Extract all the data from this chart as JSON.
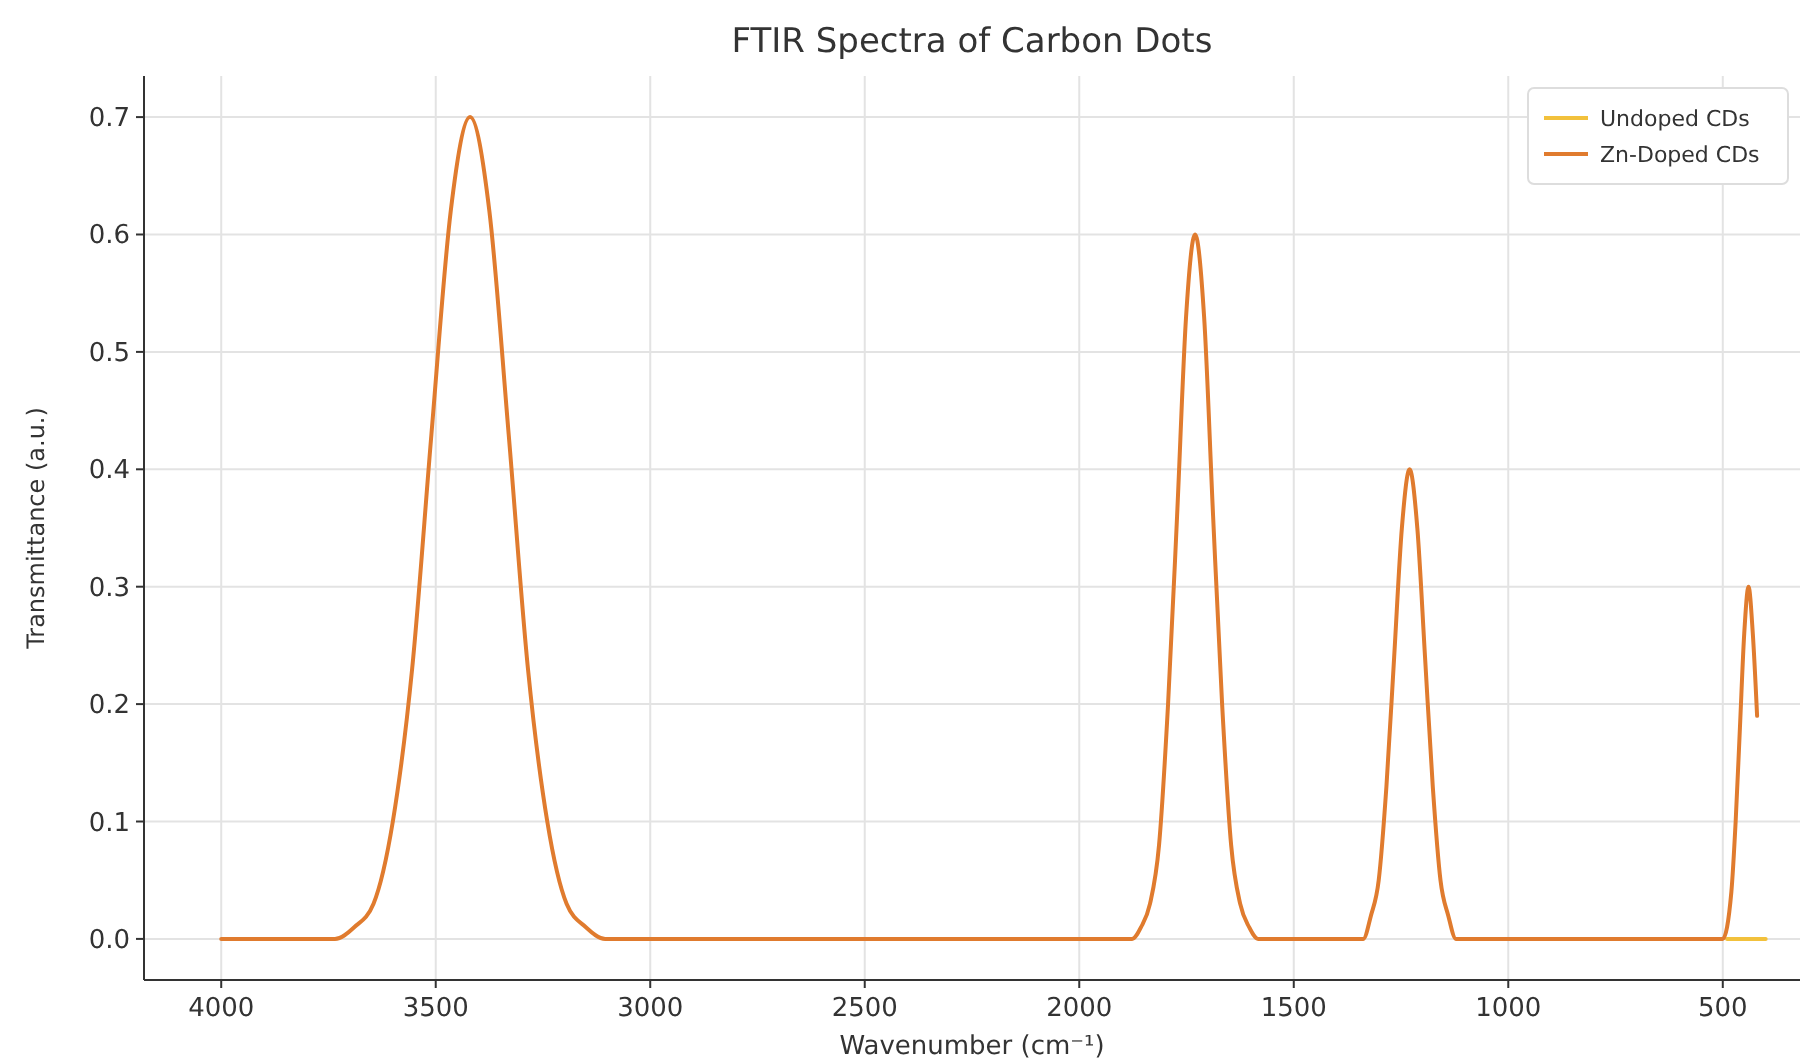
{
  "chart_data": {
    "type": "line",
    "title": "FTIR Spectra of Carbon Dots",
    "xlabel": "Wavenumber (cm⁻¹)",
    "ylabel": "Transmittance (a.u.)",
    "xlim": [
      4180,
      320
    ],
    "xticks": [
      4000,
      3500,
      3000,
      2500,
      2000,
      1500,
      1000,
      500
    ],
    "ylim": [
      -0.035,
      0.735
    ],
    "yticks": [
      {
        "value": 0,
        "label": "0.0"
      },
      0.1,
      0.2,
      0.3,
      0.4,
      0.5,
      0.6,
      0.7
    ],
    "grid": true,
    "legend": "top right",
    "line_style": "solid",
    "marker": "none",
    "series": [
      {
        "name": "Undoped CDs",
        "color": "#f2c13c",
        "x": [
          490,
          400
        ],
        "values": [
          0,
          0
        ]
      },
      {
        "name": "Zn-Doped CDs",
        "color": "#e07b2e",
        "x": [
          4000,
          3735,
          3690,
          3645,
          3600,
          3555,
          3510,
          3465,
          3420,
          3375,
          3330,
          3285,
          3240,
          3195,
          3150,
          3105,
          1877,
          1856,
          1835,
          1814,
          1793,
          1772,
          1751,
          1730,
          1709,
          1688,
          1667,
          1646,
          1625,
          1604,
          1583,
          1356,
          1338,
          1320,
          1302,
          1284,
          1266,
          1248,
          1230,
          1212,
          1194,
          1176,
          1158,
          1140,
          1122,
          1104,
          520,
          500,
          480,
          470,
          460,
          450,
          440,
          430,
          420
        ],
        "values": [
          0,
          0,
          0.01,
          0.03,
          0.1,
          0.23,
          0.43,
          0.62,
          0.7,
          0.62,
          0.43,
          0.23,
          0.1,
          0.03,
          0.01,
          0,
          0,
          0.01,
          0.03,
          0.08,
          0.2,
          0.36,
          0.53,
          0.6,
          0.53,
          0.36,
          0.2,
          0.08,
          0.03,
          0.01,
          0,
          0,
          0,
          0.02,
          0.05,
          0.13,
          0.24,
          0.35,
          0.4,
          0.35,
          0.24,
          0.13,
          0.05,
          0.02,
          0,
          0,
          0,
          0,
          0.04,
          0.1,
          0.18,
          0.26,
          0.3,
          0.26,
          0.19
        ]
      }
    ]
  }
}
